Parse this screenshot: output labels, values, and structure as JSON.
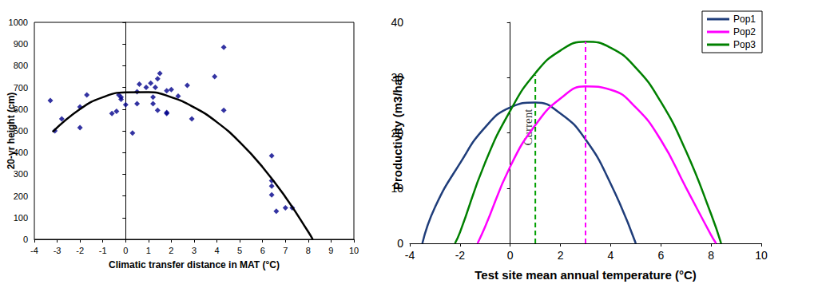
{
  "chart_data": [
    {
      "type": "scatter",
      "xlabel": "Climatic transfer distance in MAT (°C)",
      "ylabel": "20-yr height (cm)",
      "xlim": [
        -4,
        10
      ],
      "xticks": [
        -4,
        -3,
        -2,
        -1,
        0,
        1,
        2,
        3,
        4,
        5,
        6,
        7,
        8,
        9,
        10
      ],
      "ylim": [
        0,
        1000
      ],
      "yticks": [
        0,
        100,
        200,
        300,
        400,
        500,
        600,
        700,
        800,
        900,
        1000
      ],
      "grid": false,
      "series": [
        {
          "type": "scatter",
          "marker": "diamond",
          "color": "#00008b",
          "x": [
            -3.3,
            -3.1,
            -2.8,
            -2.0,
            -2.0,
            -1.7,
            -0.6,
            -0.4,
            -0.3,
            -0.2,
            -0.2,
            0.0,
            0.3,
            0.5,
            0.5,
            0.6,
            0.9,
            1.1,
            1.2,
            1.2,
            1.3,
            1.4,
            1.5,
            1.4,
            1.8,
            1.8,
            1.8,
            2.0,
            2.3,
            2.7,
            2.9,
            3.9,
            4.3,
            4.3,
            6.4,
            6.4,
            6.4,
            6.4,
            6.6,
            7.0,
            7.3
          ],
          "values": [
            640,
            500,
            555,
            610,
            515,
            665,
            580,
            590,
            665,
            645,
            655,
            620,
            490,
            625,
            680,
            715,
            700,
            720,
            655,
            625,
            700,
            740,
            765,
            595,
            585,
            580,
            685,
            690,
            660,
            710,
            555,
            750,
            885,
            595,
            385,
            270,
            245,
            205,
            130,
            145,
            145
          ]
        },
        {
          "type": "line",
          "color": "#000000",
          "x": [
            -3.2,
            -2,
            -1,
            0,
            1,
            2,
            3,
            4,
            5,
            6,
            7,
            8,
            8.2
          ],
          "values": [
            495,
            600,
            655,
            677,
            678,
            655,
            608,
            540,
            448,
            333,
            195,
            35,
            0
          ]
        }
      ]
    },
    {
      "type": "line",
      "xlabel": "Test site mean annual temperature (°C)",
      "ylabel": "Productivity (m3/ha)",
      "xlim": [
        -4,
        10
      ],
      "xticks": [
        -4,
        -2,
        0,
        2,
        4,
        6,
        8,
        10
      ],
      "ylim": [
        0,
        40
      ],
      "yticks": [
        0,
        10,
        20,
        30,
        40
      ],
      "grid": false,
      "legend": "upper right",
      "series": [
        {
          "name": "Pop1",
          "color": "#1f3d7a",
          "x": [
            -3.5,
            -3,
            -2,
            -1,
            0,
            1,
            2,
            3,
            4,
            5
          ],
          "values": [
            0,
            6.5,
            14.5,
            21,
            24.6,
            25.5,
            23.5,
            18.8,
            10.8,
            0
          ]
        },
        {
          "name": "Pop2",
          "color": "#ff00ff",
          "x": [
            -1.3,
            -1,
            0,
            1,
            2,
            3,
            4,
            5,
            6,
            7,
            8,
            8.2
          ],
          "values": [
            0,
            3,
            13.9,
            21.4,
            26.2,
            28.4,
            27.8,
            24.6,
            18.7,
            10.1,
            1.5,
            0
          ]
        },
        {
          "name": "Pop3",
          "color": "#008000",
          "x": [
            -2.2,
            -2,
            -1,
            0,
            1,
            2,
            3,
            4,
            5,
            6,
            7,
            8,
            8.4
          ],
          "values": [
            0,
            2,
            14.6,
            24,
            30.8,
            34.9,
            36.5,
            35.4,
            31.8,
            25.6,
            16.7,
            5.3,
            0
          ]
        },
        {
          "type": "line",
          "line_style": "dashed",
          "color": "#00a000",
          "x": [
            1,
            1
          ],
          "values": [
            0,
            30.5
          ]
        },
        {
          "type": "line",
          "line_style": "dashed",
          "color": "#ff00ff",
          "x": [
            3,
            3
          ],
          "values": [
            0,
            36.5
          ]
        }
      ],
      "annotations": [
        {
          "text": "Current",
          "x": 0.7,
          "y": 21
        }
      ]
    }
  ]
}
